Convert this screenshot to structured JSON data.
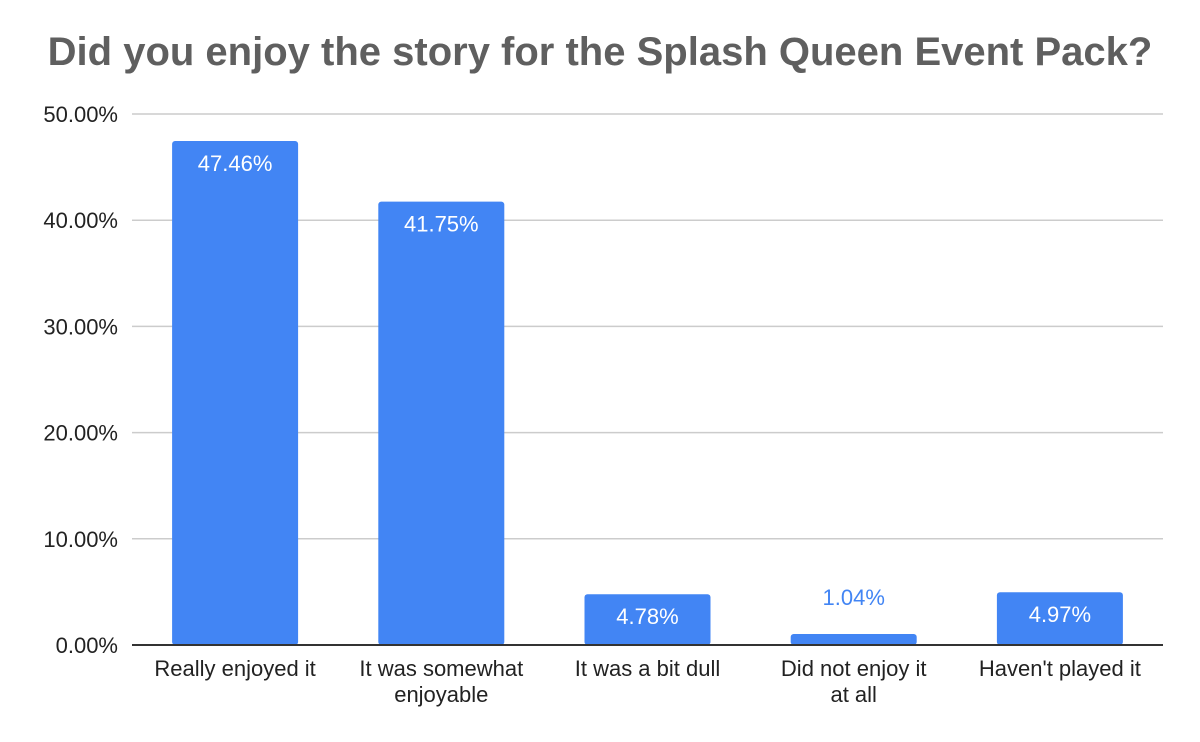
{
  "chart_data": {
    "type": "bar",
    "title": "Did you enjoy the story for the Splash Queen Event Pack?",
    "categories": [
      [
        "Really enjoyed it"
      ],
      [
        "It was somewhat",
        "enjoyable"
      ],
      [
        "It was a bit dull"
      ],
      [
        "Did not enjoy it",
        "at all"
      ],
      [
        "Haven't played it"
      ]
    ],
    "values": [
      47.46,
      41.75,
      4.78,
      1.04,
      4.97
    ],
    "data_labels": [
      "47.46%",
      "41.75%",
      "4.78%",
      "1.04%",
      "4.97%"
    ],
    "y_ticks": [
      "0.00%",
      "10.00%",
      "20.00%",
      "30.00%",
      "40.00%",
      "50.00%"
    ],
    "ylim": [
      0,
      50
    ],
    "grid": true,
    "legend": "none",
    "colors": {
      "bar": "#4285f4",
      "label_inside": "#ffffff",
      "label_outside": "#4285f4",
      "grid": "#cccccc",
      "axis": "#333333",
      "title": "#5f5f5f"
    }
  }
}
